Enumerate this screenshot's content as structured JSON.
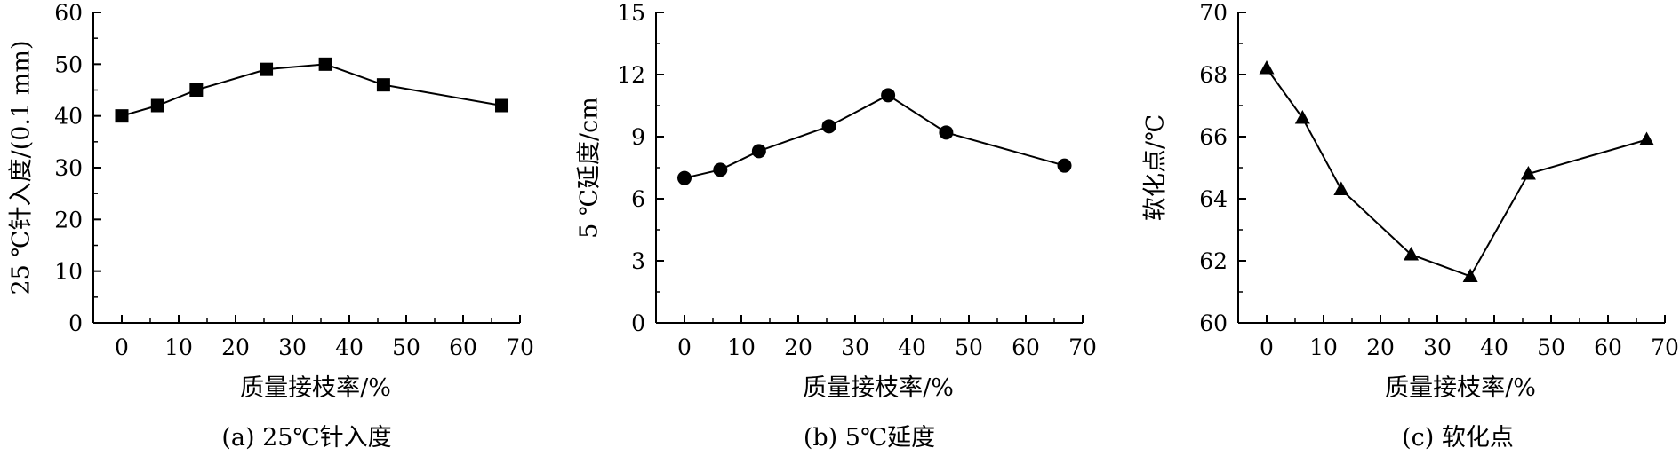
{
  "chart_data": [
    {
      "type": "line",
      "marker": "square",
      "caption": "(a) 25℃针入度",
      "xlabel": "质量接枝率/%",
      "ylabel": "25 ℃针入度/(0.1 mm)",
      "xlim": [
        -5,
        70
      ],
      "ylim": [
        0,
        60
      ],
      "xticks": [
        "0",
        "10",
        "20",
        "30",
        "40",
        "50",
        "60",
        "70"
      ],
      "yticks": [
        "0",
        "10",
        "20",
        "30",
        "40",
        "50",
        "60"
      ],
      "x": [
        0,
        6.3,
        13.1,
        25.4,
        35.8,
        46.0,
        66.8
      ],
      "y": [
        40,
        42,
        45,
        49,
        50,
        46,
        42
      ]
    },
    {
      "type": "line",
      "marker": "circle",
      "caption": "(b) 5℃延度",
      "xlabel": "质量接枝率/%",
      "ylabel": "5 ℃延度/cm",
      "xlim": [
        -5,
        70
      ],
      "ylim": [
        0,
        15
      ],
      "xticks": [
        "0",
        "10",
        "20",
        "30",
        "40",
        "50",
        "60",
        "70"
      ],
      "yticks": [
        "0",
        "3",
        "6",
        "9",
        "12",
        "15"
      ],
      "x": [
        0,
        6.3,
        13.1,
        25.4,
        35.8,
        46.0,
        66.8
      ],
      "y": [
        7.0,
        7.4,
        8.3,
        9.5,
        11.0,
        9.2,
        7.6
      ]
    },
    {
      "type": "line",
      "marker": "triangle",
      "caption": "(c) 软化点",
      "xlabel": "质量接枝率/%",
      "ylabel": "软化点/℃",
      "xlim": [
        -5,
        70
      ],
      "ylim": [
        60,
        70
      ],
      "xticks": [
        "0",
        "10",
        "20",
        "30",
        "40",
        "50",
        "60",
        "70"
      ],
      "yticks": [
        "60",
        "62",
        "64",
        "66",
        "68",
        "70"
      ],
      "x": [
        0,
        6.3,
        13.1,
        25.4,
        35.8,
        46.0,
        66.8
      ],
      "y": [
        68.2,
        66.6,
        64.3,
        62.2,
        61.5,
        64.8,
        65.9
      ]
    }
  ]
}
